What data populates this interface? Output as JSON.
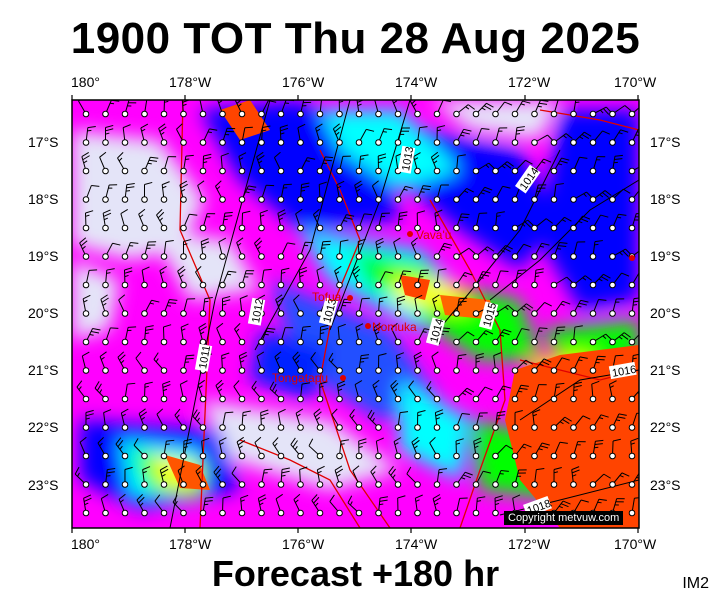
{
  "title": "1900 TOT Thu 28 Aug 2025",
  "forecast": "Forecast +180 hr",
  "image_id": "IM2",
  "copyright": "Copyright metvuw.com",
  "lon_labels": [
    "180°",
    "178°W",
    "176°W",
    "174°W",
    "172°W",
    "170°W"
  ],
  "lat_labels": [
    "17°S",
    "18°S",
    "19°S",
    "20°S",
    "21°S",
    "22°S",
    "23°S"
  ],
  "places": [
    {
      "name": "Vava'u",
      "lon": -174.0,
      "lat": -18.6
    },
    {
      "name": "Tofua",
      "lon": -175.1,
      "lat": -19.75
    },
    {
      "name": "Nomuka",
      "lon": -174.8,
      "lat": -20.25
    },
    {
      "name": "Tongatapu",
      "lon": -175.2,
      "lat": -21.15
    }
  ],
  "isobars": [
    "1010",
    "1011",
    "1012",
    "1013",
    "1014",
    "1015",
    "1016",
    "1018"
  ],
  "colors": {
    "calm": "#e4e4f8",
    "light": "#ff00ff",
    "moderate": "#0000ff",
    "fresh": "#00ffff",
    "strong": "#00ff00",
    "gale": "#ffff00",
    "storm": "#ff4400",
    "border": "#e00000"
  }
}
